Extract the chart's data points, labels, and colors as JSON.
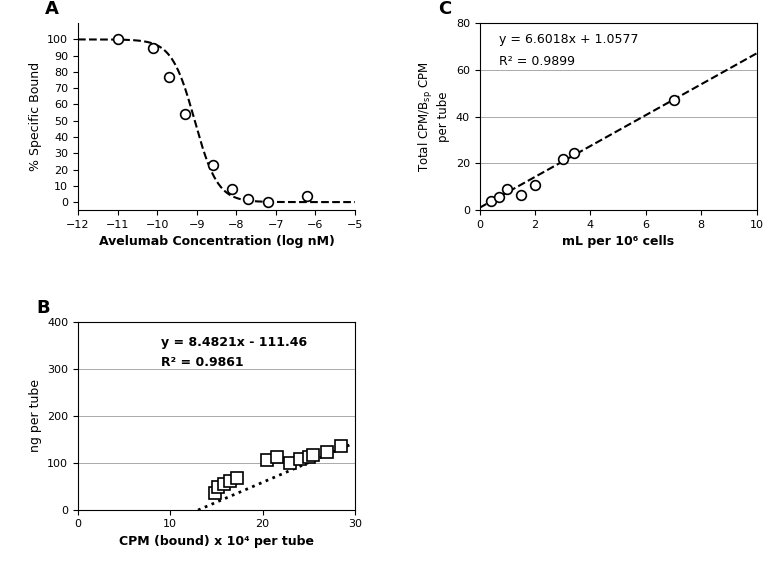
{
  "panel_A": {
    "label": "A",
    "xlabel": "Avelumab Concentration (log nM)",
    "ylabel": "% Specific Bound",
    "xlim": [
      -12,
      -5
    ],
    "ylim": [
      -5,
      110
    ],
    "xticks": [
      -12,
      -11,
      -10,
      -9,
      -8,
      -7,
      -6,
      -5
    ],
    "yticks": [
      0,
      10,
      20,
      30,
      40,
      50,
      60,
      70,
      80,
      90,
      100
    ],
    "data_x": [
      -11.0,
      -10.1,
      -9.7,
      -9.3,
      -8.6,
      -8.1,
      -7.7,
      -7.2,
      -6.2
    ],
    "data_y": [
      100,
      95,
      77,
      54,
      23,
      8,
      2,
      0,
      4
    ],
    "ec50": -9.05,
    "hillslope": 1.5
  },
  "panel_B": {
    "label": "B",
    "xlabel": "CPM (bound) x 10⁴ per tube",
    "ylabel": "ng per tube",
    "xlim": [
      0,
      30
    ],
    "ylim": [
      0,
      400
    ],
    "xticks": [
      0,
      10,
      20,
      30
    ],
    "yticks": [
      0,
      100,
      200,
      300,
      400
    ],
    "data_x": [
      14.8,
      15.2,
      15.8,
      16.5,
      17.2,
      20.5,
      21.5,
      23.0,
      24.0,
      25.0,
      25.5,
      27.0,
      28.5
    ],
    "data_y": [
      35,
      48,
      55,
      60,
      67,
      105,
      112,
      100,
      108,
      112,
      116,
      122,
      135
    ],
    "eq_text": "y = 8.4821x - 111.46",
    "r2_text": "R² = 0.9861",
    "slope": 8.4821,
    "intercept": -111.46,
    "line_x": [
      13.0,
      29.5
    ]
  },
  "panel_C": {
    "label": "C",
    "xlabel": "mL per 10⁶ cells",
    "xlim": [
      0,
      10
    ],
    "ylim": [
      0,
      80
    ],
    "xticks": [
      0,
      2,
      4,
      6,
      8,
      10
    ],
    "yticks": [
      0,
      20,
      40,
      60,
      80
    ],
    "data_x": [
      0.4,
      0.7,
      1.0,
      1.5,
      2.0,
      3.0,
      3.4,
      7.0
    ],
    "data_y": [
      4.0,
      5.5,
      9.0,
      6.5,
      11.0,
      22.0,
      24.5,
      47.0
    ],
    "eq_text": "y = 6.6018x + 1.0577",
    "r2_text": "R² = 0.9899",
    "slope": 6.6018,
    "intercept": 1.0577,
    "line_x": [
      0.0,
      10.0
    ]
  }
}
